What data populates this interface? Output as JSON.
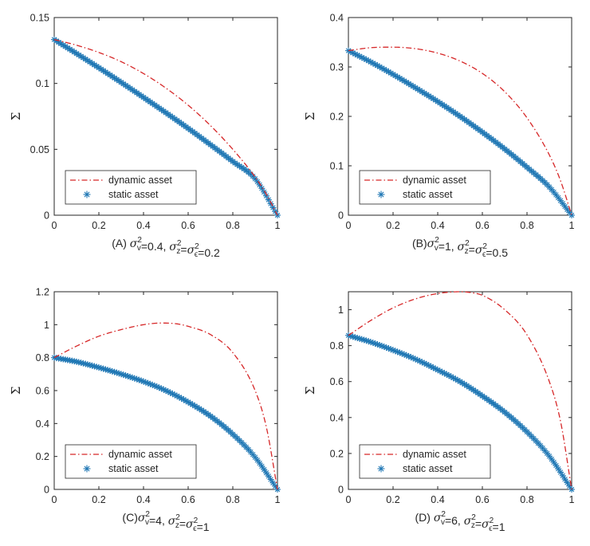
{
  "chart_data": [
    {
      "panel": "A",
      "type": "line",
      "caption": "(A) σ_v^2=0.4, σ_z^2=σ_ϵ^2=0.2",
      "caption_parts": {
        "prefix": "(A) ",
        "v_sym": "σ",
        "v_sub": "v",
        "v_sup": "2",
        "v_val": "=0.4, ",
        "z_sym": "σ",
        "z_sub": "z",
        "z_sup": "2",
        "eq": "=",
        "e_sym": "σ",
        "e_sub": "ϵ",
        "e_sup": "2",
        "e_val": "=0.2"
      },
      "ylabel": "Σ",
      "xlim": [
        0,
        1
      ],
      "ylim": [
        0,
        0.15
      ],
      "xticks": [
        "0",
        "0.2",
        "0.4",
        "0.6",
        "0.8",
        "1"
      ],
      "yticks": [
        "0",
        "0.05",
        "0.1",
        "0.15"
      ],
      "ytick_values": [
        0,
        0.05,
        0.1,
        0.15
      ],
      "legend": [
        "dynamic asset",
        "static asset"
      ],
      "series": [
        {
          "name": "dynamic asset",
          "x": [
            0,
            0.1,
            0.2,
            0.3,
            0.4,
            0.5,
            0.6,
            0.7,
            0.8,
            0.9,
            0.95,
            1
          ],
          "y": [
            0.1333,
            0.129,
            0.1235,
            0.1165,
            0.1075,
            0.0965,
            0.0835,
            0.068,
            0.05,
            0.029,
            0.016,
            0
          ]
        },
        {
          "name": "static asset",
          "x": [
            0,
            0.1,
            0.2,
            0.3,
            0.4,
            0.5,
            0.6,
            0.7,
            0.8,
            0.9,
            1
          ],
          "y": [
            0.1333,
            0.1227,
            0.1119,
            0.1008,
            0.0894,
            0.0778,
            0.0659,
            0.0535,
            0.0408,
            0.0276,
            0
          ]
        }
      ]
    },
    {
      "panel": "B",
      "type": "line",
      "caption": "(B)σ_v^2=1, σ_z^2=σ_ϵ^2=0.5",
      "caption_parts": {
        "prefix": "(B)",
        "v_sym": "σ",
        "v_sub": "v",
        "v_sup": "2",
        "v_val": "=1, ",
        "z_sym": "σ",
        "z_sub": "z",
        "z_sup": "2",
        "eq": "=",
        "e_sym": "σ",
        "e_sub": "ϵ",
        "e_sup": "2",
        "e_val": "=0.5"
      },
      "ylabel": "Σ",
      "xlim": [
        0,
        1
      ],
      "ylim": [
        0,
        0.4
      ],
      "xticks": [
        "0",
        "0.2",
        "0.4",
        "0.6",
        "0.8",
        "1"
      ],
      "yticks": [
        "0",
        "0.1",
        "0.2",
        "0.3",
        "0.4"
      ],
      "ytick_values": [
        0,
        0.1,
        0.2,
        0.3,
        0.4
      ],
      "legend": [
        "dynamic asset",
        "static asset"
      ],
      "series": [
        {
          "name": "dynamic asset",
          "x": [
            0,
            0.1,
            0.2,
            0.3,
            0.4,
            0.5,
            0.6,
            0.7,
            0.8,
            0.9,
            0.95,
            1
          ],
          "y": [
            0.333,
            0.339,
            0.34,
            0.337,
            0.328,
            0.312,
            0.287,
            0.25,
            0.197,
            0.122,
            0.07,
            0
          ]
        },
        {
          "name": "static asset",
          "x": [
            0,
            0.1,
            0.2,
            0.3,
            0.4,
            0.5,
            0.6,
            0.7,
            0.8,
            0.9,
            1
          ],
          "y": [
            0.333,
            0.31,
            0.285,
            0.258,
            0.23,
            0.2,
            0.168,
            0.134,
            0.097,
            0.057,
            0
          ]
        }
      ]
    },
    {
      "panel": "C",
      "type": "line",
      "caption": "(C)σ_v^2=4, σ_z^2=σ_ϵ^2=1",
      "caption_parts": {
        "prefix": "(C)",
        "v_sym": "σ",
        "v_sub": "v",
        "v_sup": "2",
        "v_val": "=4, ",
        "z_sym": "σ",
        "z_sub": "z",
        "z_sup": "2",
        "eq": "=",
        "e_sym": "σ",
        "e_sub": "ϵ",
        "e_sup": "2",
        "e_val": "=1"
      },
      "ylabel": "Σ",
      "xlim": [
        0,
        1
      ],
      "ylim": [
        0,
        1.2
      ],
      "xticks": [
        "0",
        "0.2",
        "0.4",
        "0.6",
        "0.8",
        "1"
      ],
      "yticks": [
        "0",
        "0.2",
        "0.4",
        "0.6",
        "0.8",
        "1",
        "1.2"
      ],
      "ytick_values": [
        0,
        0.2,
        0.4,
        0.6,
        0.8,
        1,
        1.2
      ],
      "legend": [
        "dynamic asset",
        "static asset"
      ],
      "series": [
        {
          "name": "dynamic asset",
          "x": [
            0,
            0.1,
            0.2,
            0.3,
            0.4,
            0.48,
            0.55,
            0.6,
            0.7,
            0.8,
            0.9,
            0.95,
            1
          ],
          "y": [
            0.8,
            0.87,
            0.93,
            0.97,
            1.0,
            1.01,
            1.005,
            0.99,
            0.94,
            0.83,
            0.6,
            0.38,
            0
          ]
        },
        {
          "name": "static asset",
          "x": [
            0,
            0.1,
            0.2,
            0.3,
            0.4,
            0.5,
            0.6,
            0.7,
            0.8,
            0.9,
            1
          ],
          "y": [
            0.8,
            0.775,
            0.74,
            0.7,
            0.655,
            0.6,
            0.53,
            0.445,
            0.335,
            0.195,
            0
          ]
        }
      ]
    },
    {
      "panel": "D",
      "type": "line",
      "caption": "(D) σ_v^2=6, σ_z^2=σ_ϵ^2=1",
      "caption_parts": {
        "prefix": "(D) ",
        "v_sym": "σ",
        "v_sub": "v",
        "v_sup": "2",
        "v_val": "=6, ",
        "z_sym": "σ",
        "z_sub": "z",
        "z_sup": "2",
        "eq": "=",
        "e_sym": "σ",
        "e_sub": "ϵ",
        "e_sup": "2",
        "e_val": "=1"
      },
      "ylabel": "Σ",
      "xlim": [
        0,
        1
      ],
      "ylim": [
        0,
        1.1
      ],
      "xticks": [
        "0",
        "0.2",
        "0.4",
        "0.6",
        "0.8",
        "1"
      ],
      "yticks": [
        "0",
        "0.2",
        "0.4",
        "0.6",
        "0.8",
        "1"
      ],
      "ytick_values": [
        0,
        0.2,
        0.4,
        0.6,
        0.8,
        1
      ],
      "legend": [
        "dynamic asset",
        "static asset"
      ],
      "series": [
        {
          "name": "dynamic asset",
          "x": [
            0,
            0.1,
            0.2,
            0.3,
            0.4,
            0.5,
            0.55,
            0.6,
            0.7,
            0.8,
            0.9,
            0.95,
            1
          ],
          "y": [
            0.857,
            0.94,
            1.01,
            1.06,
            1.09,
            1.1,
            1.095,
            1.08,
            1.0,
            0.86,
            0.6,
            0.38,
            0
          ]
        },
        {
          "name": "static asset",
          "x": [
            0,
            0.1,
            0.2,
            0.3,
            0.4,
            0.5,
            0.6,
            0.7,
            0.8,
            0.9,
            1
          ],
          "y": [
            0.857,
            0.82,
            0.775,
            0.725,
            0.665,
            0.6,
            0.52,
            0.43,
            0.32,
            0.185,
            0
          ]
        }
      ]
    }
  ],
  "colors": {
    "dynamic": "#d62728",
    "static": "#1f77b4",
    "axis": "#262626"
  }
}
